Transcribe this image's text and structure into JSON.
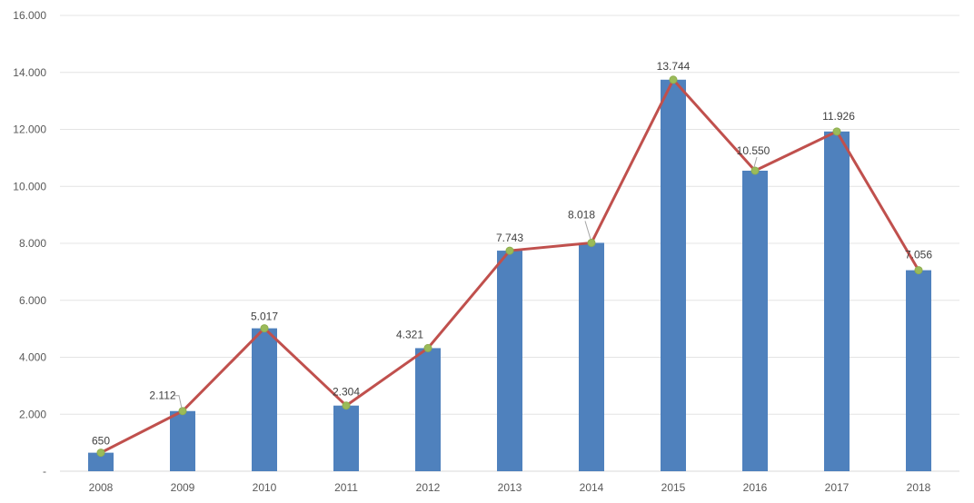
{
  "chart_data": {
    "type": "bar+line",
    "title": "",
    "xlabel": "",
    "ylabel": "",
    "ylim": [
      0,
      16000
    ],
    "y_ticks": [
      0,
      2000,
      4000,
      6000,
      8000,
      10000,
      12000,
      14000,
      16000
    ],
    "y_tick_labels": [
      "-",
      "2.000",
      "4.000",
      "6.000",
      "8.000",
      "10.000",
      "12.000",
      "14.000",
      "16.000"
    ],
    "grid": true,
    "categories": [
      "2008",
      "2009",
      "2010",
      "2011",
      "2012",
      "2013",
      "2014",
      "2015",
      "2016",
      "2017",
      "2018"
    ],
    "series": [
      {
        "name": "bars",
        "type": "bar",
        "color": "#4f81bd",
        "values": [
          650,
          2112,
          5017,
          2304,
          4321,
          7743,
          8018,
          13744,
          10550,
          11926,
          7056
        ]
      },
      {
        "name": "line",
        "type": "line",
        "color": "#c0504d",
        "marker_color": "#9bbb59",
        "values": [
          650,
          2112,
          5017,
          2304,
          4321,
          7743,
          8018,
          13744,
          10550,
          11926,
          7056
        ]
      }
    ],
    "data_labels": [
      "650",
      "2.112",
      "5.017",
      "2.304",
      "4.321",
      "7.743",
      "8.018",
      "13.744",
      "10.550",
      "11.926",
      "7.056"
    ]
  }
}
